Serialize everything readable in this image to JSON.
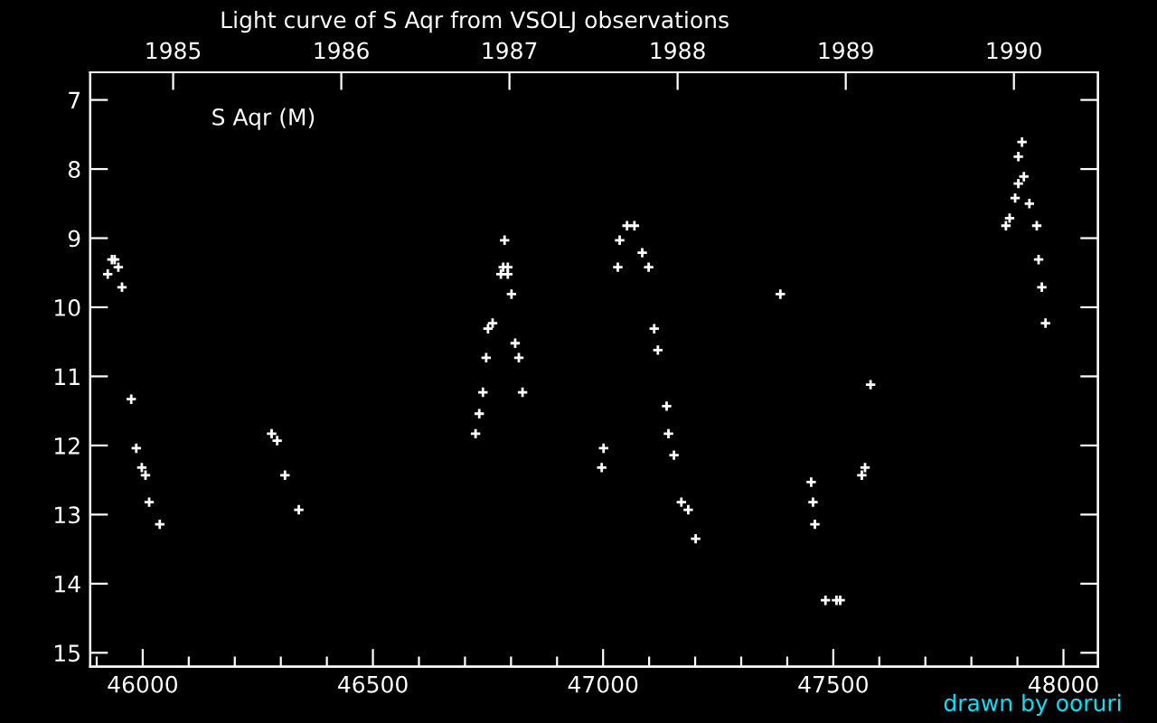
{
  "chart_data": {
    "type": "scatter",
    "title": "Light curve of S Aqr from VSOLJ observations",
    "annotations": [
      "S Aqr (M)",
      "drawn by ooruri"
    ],
    "xlim": [
      45886,
      48075
    ],
    "ylim": [
      15.2,
      6.6
    ],
    "xticks": [
      {
        "value": 45900,
        "label": null
      },
      46000,
      {
        "value": 46100,
        "label": null
      },
      {
        "value": 46200,
        "label": null
      },
      {
        "value": 46300,
        "label": null
      },
      {
        "value": 46400,
        "label": null
      },
      46500,
      {
        "value": 46600,
        "label": null
      },
      {
        "value": 46700,
        "label": null
      },
      {
        "value": 46800,
        "label": null
      },
      {
        "value": 46900,
        "label": null
      },
      47000,
      {
        "value": 47100,
        "label": null
      },
      {
        "value": 47200,
        "label": null
      },
      {
        "value": 47300,
        "label": null
      },
      {
        "value": 47400,
        "label": null
      },
      47500,
      {
        "value": 47600,
        "label": null
      },
      {
        "value": 47700,
        "label": null
      },
      {
        "value": 47800,
        "label": null
      },
      {
        "value": 47900,
        "label": null
      },
      48000
    ],
    "yticks": [
      7,
      8,
      9,
      10,
      11,
      12,
      13,
      14,
      15
    ],
    "x2lim": [
      1984.507,
      1990.5
    ],
    "x2ticks": [
      1985,
      1986,
      1987,
      1988,
      1989,
      1990
    ],
    "grid": false,
    "marker": "cross",
    "series": [
      {
        "color": "#ffffff",
        "x": [
          45933,
          45939,
          45947,
          45924,
          45955,
          45975,
          45986,
          45998,
          46006,
          46014,
          46037,
          46280,
          46292,
          46309,
          46339,
          46786,
          46783,
          46793,
          46778,
          46793,
          46801,
          46760,
          46750,
          46809,
          46746,
          46817,
          46739,
          46825,
          46731,
          46723,
          47052,
          47068,
          47036,
          47085,
          47032,
          47099,
          47111,
          47119,
          47138,
          47142,
          47154,
          47170,
          47001,
          46997,
          47185,
          47201,
          47385,
          47581,
          47569,
          47562,
          47452,
          47456,
          47460,
          47483,
          47507,
          47515,
          47910,
          47902,
          47914,
          47902,
          47895,
          47926,
          47883,
          47875,
          47942,
          47946,
          47953,
          47961
        ],
        "values": [
          9.31,
          9.31,
          9.42,
          9.52,
          9.71,
          11.33,
          12.04,
          12.32,
          12.43,
          12.82,
          13.14,
          11.83,
          11.93,
          12.43,
          12.93,
          9.03,
          9.42,
          9.42,
          9.52,
          9.52,
          9.81,
          10.23,
          10.31,
          10.52,
          10.73,
          10.73,
          11.23,
          11.23,
          11.54,
          11.83,
          8.82,
          8.82,
          9.03,
          9.21,
          9.42,
          9.42,
          10.31,
          10.62,
          11.43,
          11.83,
          12.14,
          12.82,
          12.04,
          12.32,
          12.93,
          13.35,
          9.81,
          11.12,
          12.32,
          12.43,
          12.53,
          12.82,
          13.14,
          14.24,
          14.24,
          14.24,
          7.61,
          7.82,
          8.11,
          8.21,
          8.42,
          8.5,
          8.71,
          8.82,
          8.82,
          9.31,
          9.71,
          10.23
        ]
      }
    ]
  }
}
